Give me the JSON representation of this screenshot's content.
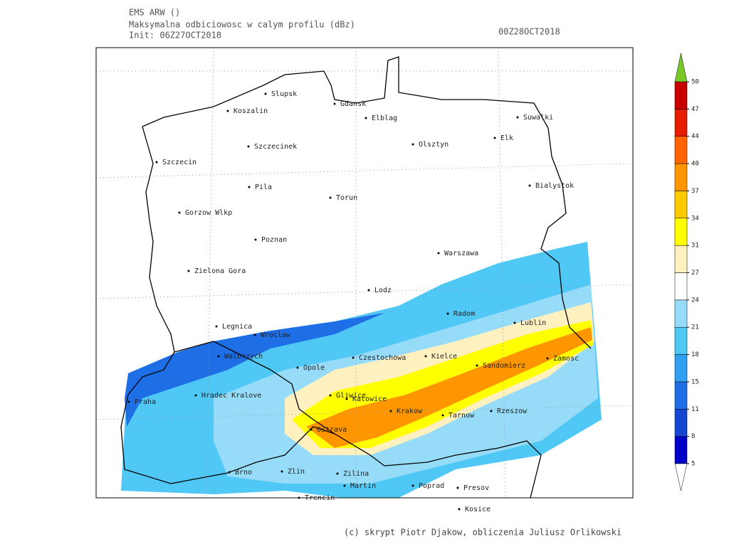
{
  "header": {
    "model": "EMS ARW ()",
    "title": "Maksymalna odbiciowosc w calym profilu (dBz)",
    "init": "Init: 06Z27OCT2018",
    "valid": "00Z28OCT2018"
  },
  "map": {
    "cities": [
      "Slupsk",
      "Koszalin",
      "Gdansk",
      "Elblag",
      "Suwalki",
      "Elk",
      "Olsztyn",
      "Szczecinek",
      "Szczecin",
      "Pila",
      "Torun",
      "Bialystok",
      "Gorzow Wlkp",
      "Poznan",
      "Warszawa",
      "Zielona Gora",
      "Lodz",
      "Radom",
      "Lublin",
      "Legnica",
      "Wroclaw",
      "Walbrzych",
      "Opole",
      "Czestochowa",
      "Kielce",
      "Sandomierz",
      "Zamosc",
      "Praha",
      "Hradec Kralove",
      "Gliwice",
      "Katowice",
      "Krakow",
      "Tarnow",
      "Rzeszow",
      "Ostrava",
      "Brno",
      "Zlin",
      "Zilina",
      "Martin",
      "Poprad",
      "Presov",
      "Trencin",
      "Kosice"
    ]
  },
  "colorbar": {
    "ticks": [
      5,
      8,
      11,
      15,
      18,
      21,
      24,
      27,
      31,
      34,
      37,
      40,
      44,
      47,
      50
    ],
    "colors": [
      "#0000c8",
      "#1446d2",
      "#1e6ee6",
      "#32a0f0",
      "#50c8f5",
      "#96dcf8",
      "#ffffff",
      "#fff0c0",
      "#ffff00",
      "#ffc800",
      "#ff9600",
      "#ff6400",
      "#e61e00",
      "#c80000"
    ],
    "over_color": "#78c828",
    "under_color": "#ffffff"
  },
  "footer": {
    "credit": "(c) skrypt Piotr Djakow, obliczenia Juliusz Orlikowski"
  }
}
